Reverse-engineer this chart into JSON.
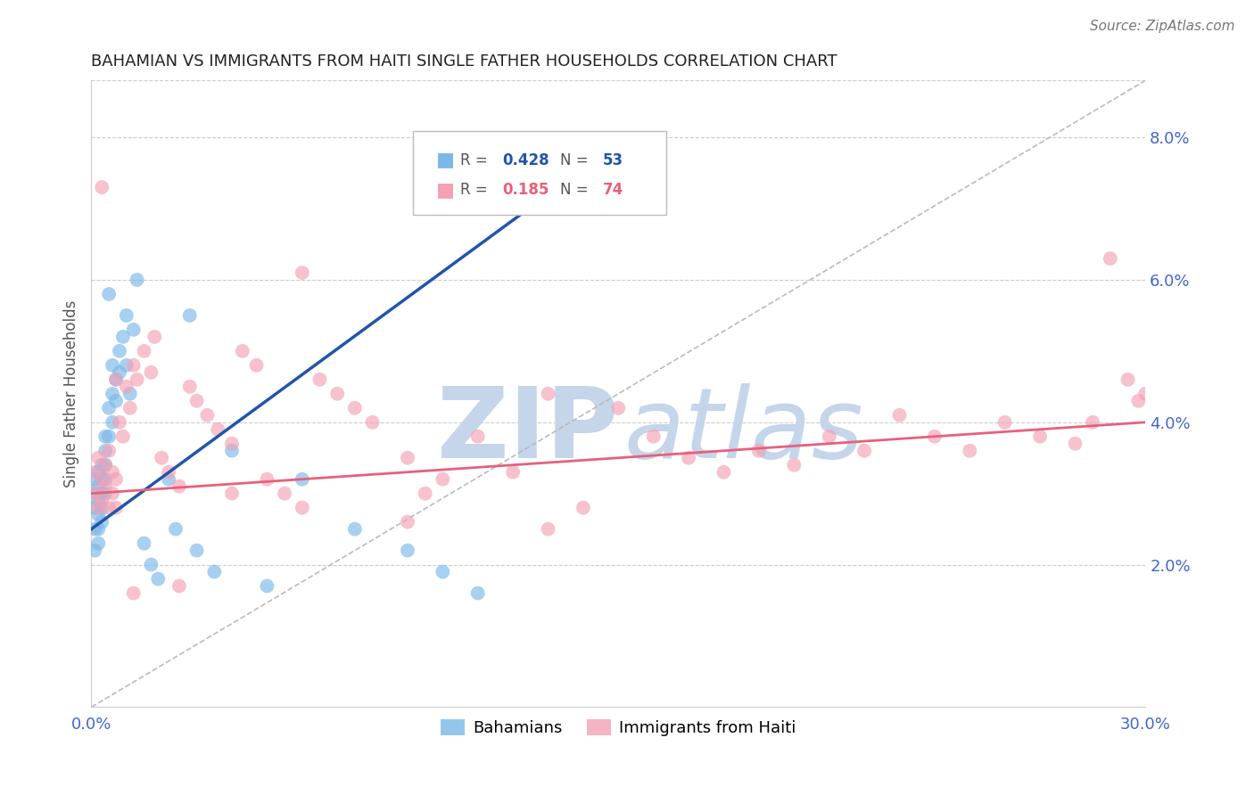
{
  "title": "BAHAMIAN VS IMMIGRANTS FROM HAITI SINGLE FATHER HOUSEHOLDS CORRELATION CHART",
  "source": "Source: ZipAtlas.com",
  "ylabel": "Single Father Households",
  "x_min": 0.0,
  "x_max": 0.3,
  "y_min": 0.0,
  "y_max": 0.088,
  "x_ticks": [
    0.0,
    0.05,
    0.1,
    0.15,
    0.2,
    0.25,
    0.3
  ],
  "x_tick_labels": [
    "0.0%",
    "",
    "",
    "",
    "",
    "",
    "30.0%"
  ],
  "y_ticks_right": [
    0.02,
    0.04,
    0.06,
    0.08
  ],
  "y_tick_labels_right": [
    "2.0%",
    "4.0%",
    "6.0%",
    "8.0%"
  ],
  "bahamian_R": 0.428,
  "bahamian_N": 53,
  "haiti_R": 0.185,
  "haiti_N": 74,
  "blue_color": "#7ab8e8",
  "pink_color": "#f4a0b5",
  "blue_line_color": "#2255aa",
  "pink_line_color": "#e8607a",
  "diag_color": "#bbbbbb",
  "watermark_zip_color": "#c5d5ea",
  "watermark_atlas_color": "#c5d5ea",
  "grid_color": "#cccccc",
  "tick_color": "#4466cc",
  "title_color": "#222222",
  "source_color": "#777777",
  "ylabel_color": "#555555",
  "blue_line_x0": 0.0,
  "blue_line_x1": 0.13,
  "blue_line_y0": 0.025,
  "blue_line_y1": 0.072,
  "pink_line_x0": 0.0,
  "pink_line_x1": 0.3,
  "pink_line_y0": 0.03,
  "pink_line_y1": 0.04,
  "bah_x": [
    0.001,
    0.001,
    0.001,
    0.001,
    0.001,
    0.002,
    0.002,
    0.002,
    0.002,
    0.002,
    0.002,
    0.003,
    0.003,
    0.003,
    0.003,
    0.003,
    0.004,
    0.004,
    0.004,
    0.004,
    0.004,
    0.005,
    0.005,
    0.005,
    0.006,
    0.006,
    0.006,
    0.007,
    0.007,
    0.008,
    0.008,
    0.009,
    0.01,
    0.01,
    0.011,
    0.012,
    0.013,
    0.015,
    0.017,
    0.019,
    0.022,
    0.024,
    0.028,
    0.03,
    0.035,
    0.04,
    0.05,
    0.06,
    0.075,
    0.09,
    0.1,
    0.11,
    0.13
  ],
  "bah_y": [
    0.03,
    0.032,
    0.028,
    0.025,
    0.022,
    0.033,
    0.031,
    0.029,
    0.027,
    0.025,
    0.023,
    0.034,
    0.032,
    0.03,
    0.028,
    0.026,
    0.038,
    0.036,
    0.034,
    0.032,
    0.03,
    0.058,
    0.042,
    0.038,
    0.048,
    0.044,
    0.04,
    0.046,
    0.043,
    0.05,
    0.047,
    0.052,
    0.055,
    0.048,
    0.044,
    0.053,
    0.06,
    0.023,
    0.02,
    0.018,
    0.032,
    0.025,
    0.055,
    0.022,
    0.019,
    0.036,
    0.017,
    0.032,
    0.025,
    0.022,
    0.019,
    0.016,
    0.07
  ],
  "hai_x": [
    0.001,
    0.001,
    0.002,
    0.002,
    0.003,
    0.003,
    0.004,
    0.004,
    0.005,
    0.005,
    0.006,
    0.006,
    0.007,
    0.007,
    0.008,
    0.009,
    0.01,
    0.011,
    0.012,
    0.013,
    0.015,
    0.017,
    0.02,
    0.022,
    0.025,
    0.028,
    0.03,
    0.033,
    0.036,
    0.04,
    0.043,
    0.047,
    0.05,
    0.055,
    0.06,
    0.065,
    0.07,
    0.075,
    0.08,
    0.09,
    0.095,
    0.1,
    0.11,
    0.12,
    0.13,
    0.14,
    0.15,
    0.16,
    0.17,
    0.18,
    0.19,
    0.2,
    0.21,
    0.22,
    0.23,
    0.24,
    0.25,
    0.26,
    0.27,
    0.28,
    0.285,
    0.29,
    0.295,
    0.298,
    0.3,
    0.003,
    0.007,
    0.012,
    0.018,
    0.025,
    0.04,
    0.06,
    0.09,
    0.13
  ],
  "hai_y": [
    0.03,
    0.033,
    0.028,
    0.035,
    0.032,
    0.029,
    0.031,
    0.034,
    0.028,
    0.036,
    0.033,
    0.03,
    0.032,
    0.028,
    0.04,
    0.038,
    0.045,
    0.042,
    0.048,
    0.046,
    0.05,
    0.047,
    0.035,
    0.033,
    0.031,
    0.045,
    0.043,
    0.041,
    0.039,
    0.037,
    0.05,
    0.048,
    0.032,
    0.03,
    0.028,
    0.046,
    0.044,
    0.042,
    0.04,
    0.035,
    0.03,
    0.032,
    0.038,
    0.033,
    0.025,
    0.028,
    0.042,
    0.038,
    0.035,
    0.033,
    0.036,
    0.034,
    0.038,
    0.036,
    0.041,
    0.038,
    0.036,
    0.04,
    0.038,
    0.037,
    0.04,
    0.063,
    0.046,
    0.043,
    0.044,
    0.073,
    0.046,
    0.016,
    0.052,
    0.017,
    0.03,
    0.061,
    0.026,
    0.044
  ]
}
